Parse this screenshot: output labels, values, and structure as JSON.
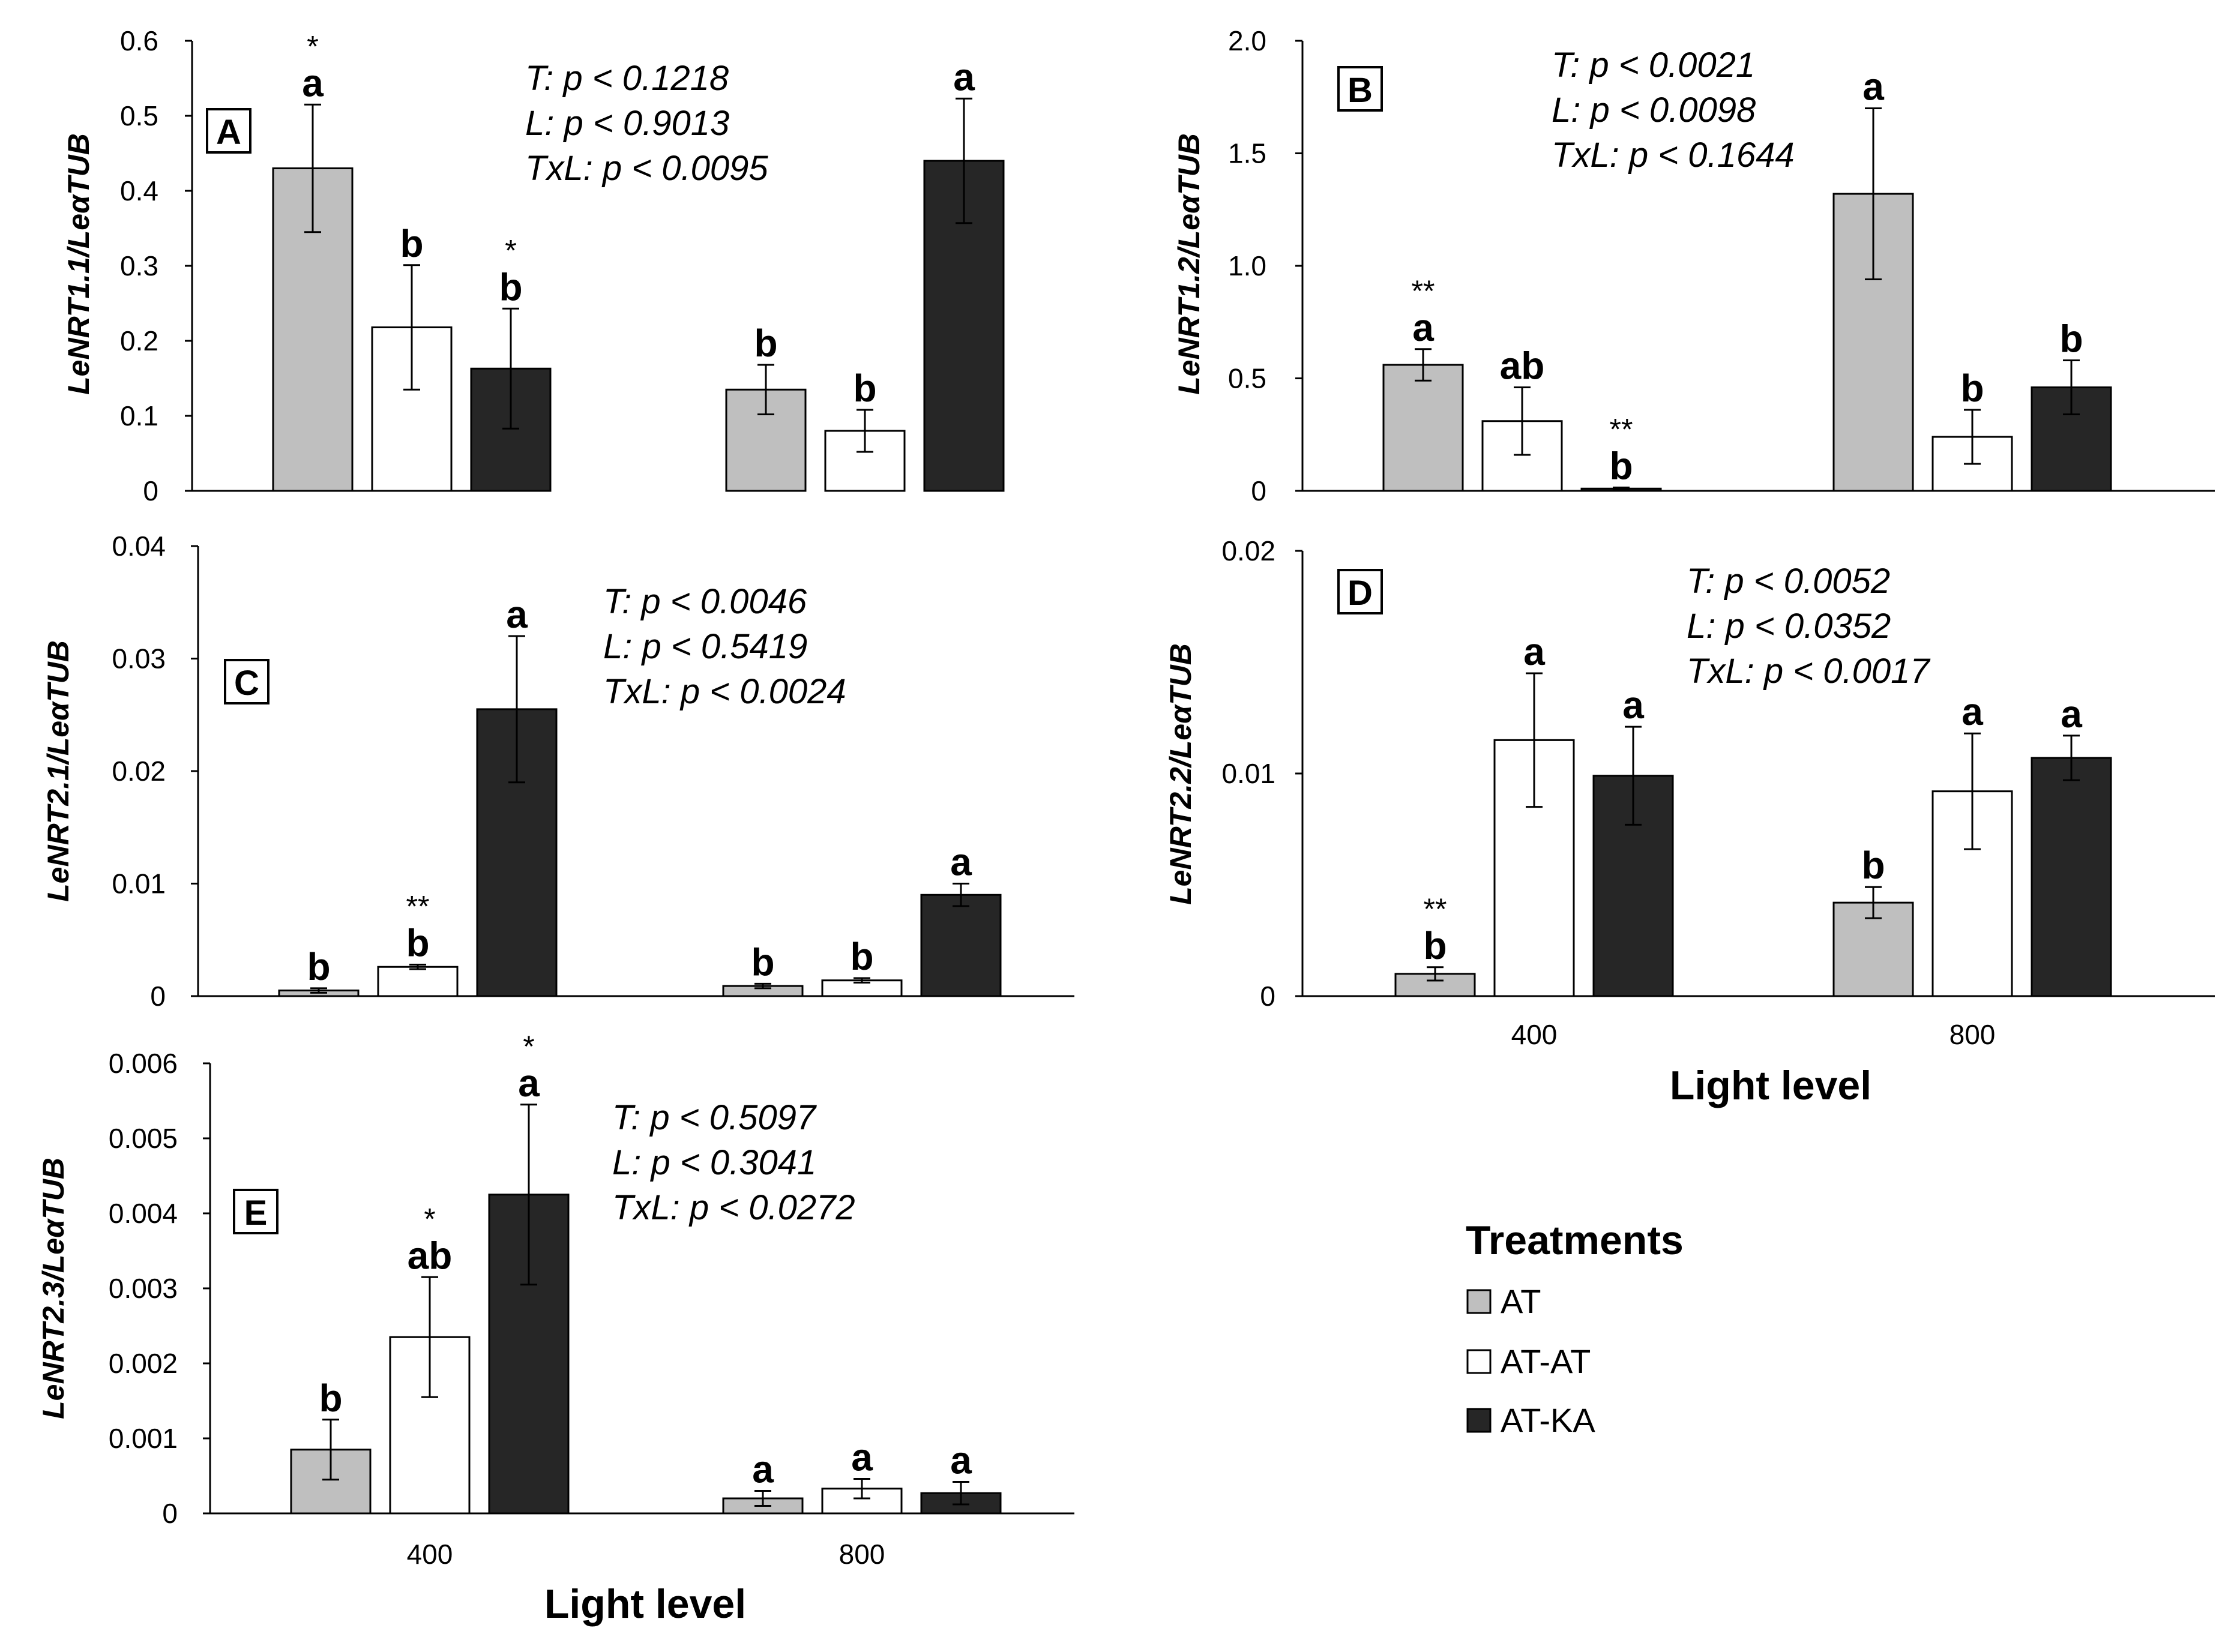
{
  "colors": {
    "AT": "#bfbfbf",
    "AT-AT": "#ffffff",
    "AT-KA": "#262626"
  },
  "x_axis_title": "Light level",
  "legend": {
    "title": "Treatments",
    "items": [
      "AT",
      "AT-AT",
      "AT-KA"
    ]
  },
  "chart_data": [
    {
      "type": "bar",
      "panel": "A",
      "ylabel": "LeNRT1.1/LeαTUB",
      "categories": [
        "400",
        "800"
      ],
      "show_x_ticks": false,
      "ylim": [
        0,
        0.6
      ],
      "yticks": [
        "0",
        "0.1",
        "0.2",
        "0.3",
        "0.4",
        "0.5",
        "0.6"
      ],
      "stats": [
        "T: p < 0.1218",
        "L: p < 0.9013",
        "TxL: p < 0.0095"
      ],
      "series": [
        {
          "name": "AT",
          "values": [
            0.43,
            0.135
          ],
          "errors": [
            0.085,
            0.033
          ],
          "letters": [
            "a",
            "b"
          ],
          "stars": [
            "*",
            ""
          ]
        },
        {
          "name": "AT-AT",
          "values": [
            0.218,
            0.08
          ],
          "errors": [
            0.083,
            0.028
          ],
          "letters": [
            "b",
            "b"
          ],
          "stars": [
            "",
            ""
          ]
        },
        {
          "name": "AT-KA",
          "values": [
            0.163,
            0.44
          ],
          "errors": [
            0.08,
            0.083
          ],
          "letters": [
            "b",
            "a"
          ],
          "stars": [
            "*",
            ""
          ]
        }
      ]
    },
    {
      "type": "bar",
      "panel": "B",
      "ylabel": "LeNRT1.2/LeαTUB",
      "categories": [
        "400",
        "800"
      ],
      "show_x_ticks": false,
      "ylim": [
        0,
        2.0
      ],
      "yticks": [
        "0",
        "0.5",
        "1.0",
        "1.5",
        "2.0"
      ],
      "stats": [
        "T: p < 0.0021",
        "L: p < 0.0098",
        "TxL: p < 0.1644"
      ],
      "series": [
        {
          "name": "AT",
          "values": [
            0.56,
            1.32
          ],
          "errors": [
            0.07,
            0.38
          ],
          "letters": [
            "a",
            "a"
          ],
          "stars": [
            "**",
            ""
          ]
        },
        {
          "name": "AT-AT",
          "values": [
            0.31,
            0.24
          ],
          "errors": [
            0.15,
            0.12
          ],
          "letters": [
            "ab",
            "b"
          ],
          "stars": [
            "",
            ""
          ]
        },
        {
          "name": "AT-KA",
          "values": [
            0.01,
            0.46
          ],
          "errors": [
            0.005,
            0.12
          ],
          "letters": [
            "b",
            "b"
          ],
          "stars": [
            "**",
            ""
          ]
        }
      ]
    },
    {
      "type": "bar",
      "panel": "C",
      "ylabel": "LeNRT2.1/LeαTUB",
      "categories": [
        "400",
        "800"
      ],
      "show_x_ticks": false,
      "ylim": [
        0,
        0.04
      ],
      "yticks": [
        "0",
        "0.01",
        "0.02",
        "0.03",
        "0.04"
      ],
      "stats": [
        "T: p < 0.0046",
        "L: p < 0.5419",
        "TxL: p < 0.0024"
      ],
      "series": [
        {
          "name": "AT",
          "values": [
            0.0005,
            0.0009
          ],
          "errors": [
            0.0002,
            0.0002
          ],
          "letters": [
            "b",
            "b"
          ],
          "stars": [
            "",
            ""
          ]
        },
        {
          "name": "AT-AT",
          "values": [
            0.0026,
            0.0014
          ],
          "errors": [
            0.0002,
            0.0002
          ],
          "letters": [
            "b",
            "b"
          ],
          "stars": [
            "**",
            ""
          ]
        },
        {
          "name": "AT-KA",
          "values": [
            0.0255,
            0.009
          ],
          "errors": [
            0.0065,
            0.001
          ],
          "letters": [
            "a",
            "a"
          ],
          "stars": [
            "",
            ""
          ]
        }
      ]
    },
    {
      "type": "bar",
      "panel": "D",
      "ylabel": "LeNRT2.2/LeαTUB",
      "categories": [
        "400",
        "800"
      ],
      "show_x_ticks": true,
      "ylim": [
        0,
        0.02
      ],
      "yticks": [
        "0",
        "0.01",
        "0.02"
      ],
      "stats": [
        "T: p < 0.0052",
        "L: p < 0.0352",
        "TxL: p < 0.0017"
      ],
      "series": [
        {
          "name": "AT",
          "values": [
            0.001,
            0.0042
          ],
          "errors": [
            0.0003,
            0.0007
          ],
          "letters": [
            "b",
            "b"
          ],
          "stars": [
            "**",
            ""
          ]
        },
        {
          "name": "AT-AT",
          "values": [
            0.0115,
            0.0092
          ],
          "errors": [
            0.003,
            0.0026
          ],
          "letters": [
            "a",
            "a"
          ],
          "stars": [
            "",
            ""
          ]
        },
        {
          "name": "AT-KA",
          "values": [
            0.0099,
            0.0107
          ],
          "errors": [
            0.0022,
            0.001
          ],
          "letters": [
            "a",
            "a"
          ],
          "stars": [
            "",
            ""
          ]
        }
      ]
    },
    {
      "type": "bar",
      "panel": "E",
      "ylabel": "LeNRT2.3/LeαTUB",
      "categories": [
        "400",
        "800"
      ],
      "show_x_ticks": true,
      "ylim": [
        0,
        0.006
      ],
      "yticks": [
        "0",
        "0.001",
        "0.002",
        "0.003",
        "0.004",
        "0.005",
        "0.006"
      ],
      "stats": [
        "T: p < 0.5097",
        "L: p < 0.3041",
        "TxL: p < 0.0272"
      ],
      "series": [
        {
          "name": "AT",
          "values": [
            0.00085,
            0.0002
          ],
          "errors": [
            0.0004,
            0.0001
          ],
          "letters": [
            "b",
            "a"
          ],
          "stars": [
            "",
            ""
          ]
        },
        {
          "name": "AT-AT",
          "values": [
            0.00235,
            0.00033
          ],
          "errors": [
            0.0008,
            0.00013
          ],
          "letters": [
            "ab",
            "a"
          ],
          "stars": [
            "*",
            ""
          ]
        },
        {
          "name": "AT-KA",
          "values": [
            0.00425,
            0.00027
          ],
          "errors": [
            0.0012,
            0.00015
          ],
          "letters": [
            "a",
            "a"
          ],
          "stars": [
            "*",
            ""
          ]
        }
      ]
    }
  ]
}
